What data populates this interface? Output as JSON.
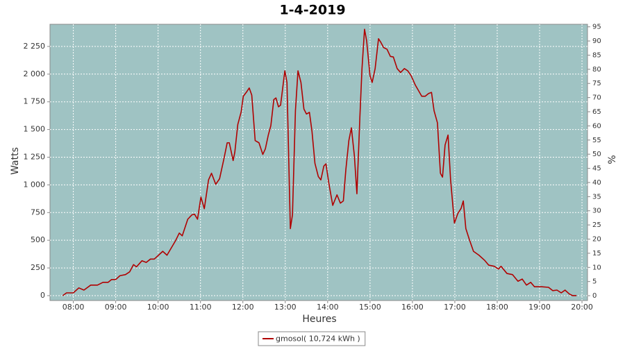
{
  "chart_data": {
    "type": "line",
    "title": "1-4-2019",
    "x_label": "Heures",
    "y_label": "Watts",
    "y2_label": "%",
    "x": [
      7.75,
      7.84,
      8.0,
      8.13,
      8.25,
      8.41,
      8.57,
      8.7,
      8.82,
      8.9,
      9.0,
      9.1,
      9.23,
      9.33,
      9.42,
      9.49,
      9.62,
      9.72,
      9.82,
      9.91,
      10.01,
      10.11,
      10.21,
      10.31,
      10.41,
      10.5,
      10.57,
      10.7,
      10.8,
      10.86,
      10.93,
      11.01,
      11.09,
      11.19,
      11.26,
      11.36,
      11.45,
      11.55,
      11.63,
      11.68,
      11.77,
      11.81,
      11.88,
      11.96,
      12.01,
      12.08,
      12.15,
      12.21,
      12.29,
      12.38,
      12.47,
      12.53,
      12.6,
      12.66,
      12.73,
      12.78,
      12.84,
      12.89,
      12.99,
      13.04,
      13.12,
      13.17,
      13.24,
      13.3,
      13.37,
      13.44,
      13.5,
      13.57,
      13.63,
      13.7,
      13.78,
      13.84,
      13.91,
      13.96,
      14.03,
      14.12,
      14.22,
      14.3,
      14.37,
      14.43,
      14.5,
      14.56,
      14.63,
      14.69,
      14.76,
      14.81,
      14.87,
      14.92,
      15.0,
      15.05,
      15.12,
      15.2,
      15.25,
      15.32,
      15.4,
      15.48,
      15.55,
      15.64,
      15.72,
      15.81,
      15.89,
      15.97,
      16.07,
      16.13,
      16.22,
      16.3,
      16.38,
      16.45,
      16.51,
      16.59,
      16.66,
      16.71,
      16.77,
      16.84,
      16.9,
      16.99,
      17.07,
      17.15,
      17.2,
      17.26,
      17.34,
      17.44,
      17.57,
      17.7,
      17.8,
      17.93,
      18.03,
      18.09,
      18.23,
      18.36,
      18.49,
      18.59,
      18.69,
      18.79,
      18.88,
      19.05,
      19.21,
      19.31,
      19.41,
      19.51,
      19.6,
      19.7,
      19.78,
      19.87
    ],
    "series": [
      {
        "name": "gmosol( 10,724 kWh )",
        "color": "#b00000",
        "values": [
          0,
          25,
          25,
          70,
          50,
          95,
          95,
          120,
          120,
          145,
          145,
          180,
          190,
          215,
          280,
          260,
          315,
          300,
          330,
          330,
          365,
          400,
          365,
          430,
          495,
          565,
          540,
          690,
          730,
          735,
          690,
          890,
          785,
          1045,
          1105,
          1005,
          1055,
          1230,
          1380,
          1380,
          1220,
          1295,
          1545,
          1660,
          1800,
          1835,
          1875,
          1810,
          1400,
          1380,
          1275,
          1325,
          1450,
          1535,
          1770,
          1785,
          1705,
          1720,
          2030,
          1925,
          605,
          730,
          1670,
          2030,
          1925,
          1685,
          1640,
          1655,
          1485,
          1195,
          1075,
          1045,
          1170,
          1190,
          1010,
          815,
          910,
          835,
          855,
          1140,
          1400,
          1515,
          1265,
          920,
          1610,
          2050,
          2405,
          2300,
          1985,
          1925,
          2050,
          2320,
          2290,
          2240,
          2225,
          2160,
          2155,
          2050,
          2015,
          2050,
          2030,
          1985,
          1900,
          1860,
          1800,
          1800,
          1825,
          1835,
          1670,
          1560,
          1105,
          1070,
          1360,
          1450,
          1045,
          655,
          740,
          790,
          855,
          605,
          510,
          400,
          365,
          320,
          275,
          265,
          240,
          265,
          200,
          190,
          130,
          150,
          95,
          120,
          80,
          80,
          75,
          45,
          50,
          25,
          50,
          15,
          0,
          0
        ]
      }
    ],
    "xlim": [
      7.45,
      20.13
    ],
    "xticks": [
      {
        "value": 8,
        "label": "08:00"
      },
      {
        "value": 9,
        "label": "09:00"
      },
      {
        "value": 10,
        "label": "10:00"
      },
      {
        "value": 11,
        "label": "11:00"
      },
      {
        "value": 12,
        "label": "12:00"
      },
      {
        "value": 13,
        "label": "13:00"
      },
      {
        "value": 14,
        "label": "14:00"
      },
      {
        "value": 15,
        "label": "15:00"
      },
      {
        "value": 16,
        "label": "16:00"
      },
      {
        "value": 17,
        "label": "17:00"
      },
      {
        "value": 18,
        "label": "18:00"
      },
      {
        "value": 19,
        "label": "19:00"
      },
      {
        "value": 20,
        "label": "20:00"
      }
    ],
    "ylim": [
      -44,
      2450
    ],
    "yticks": [
      0,
      250,
      500,
      750,
      {
        "value": 1000,
        "label": "1 000"
      },
      {
        "value": 1250,
        "label": "1 250"
      },
      {
        "value": 1500,
        "label": "1 500"
      },
      {
        "value": 1750,
        "label": "1 750"
      },
      {
        "value": 2000,
        "label": "2 000"
      },
      {
        "value": 2250,
        "label": "2 250"
      }
    ],
    "y2lim": [
      -1.7,
      95.9
    ],
    "y2ticks": [
      0,
      5,
      10,
      15,
      20,
      25,
      30,
      35,
      40,
      45,
      50,
      55,
      60,
      65,
      70,
      75,
      80,
      85,
      90,
      95
    ],
    "grid": true,
    "plot_color": "#9fc3c3",
    "legend": "bottom"
  }
}
